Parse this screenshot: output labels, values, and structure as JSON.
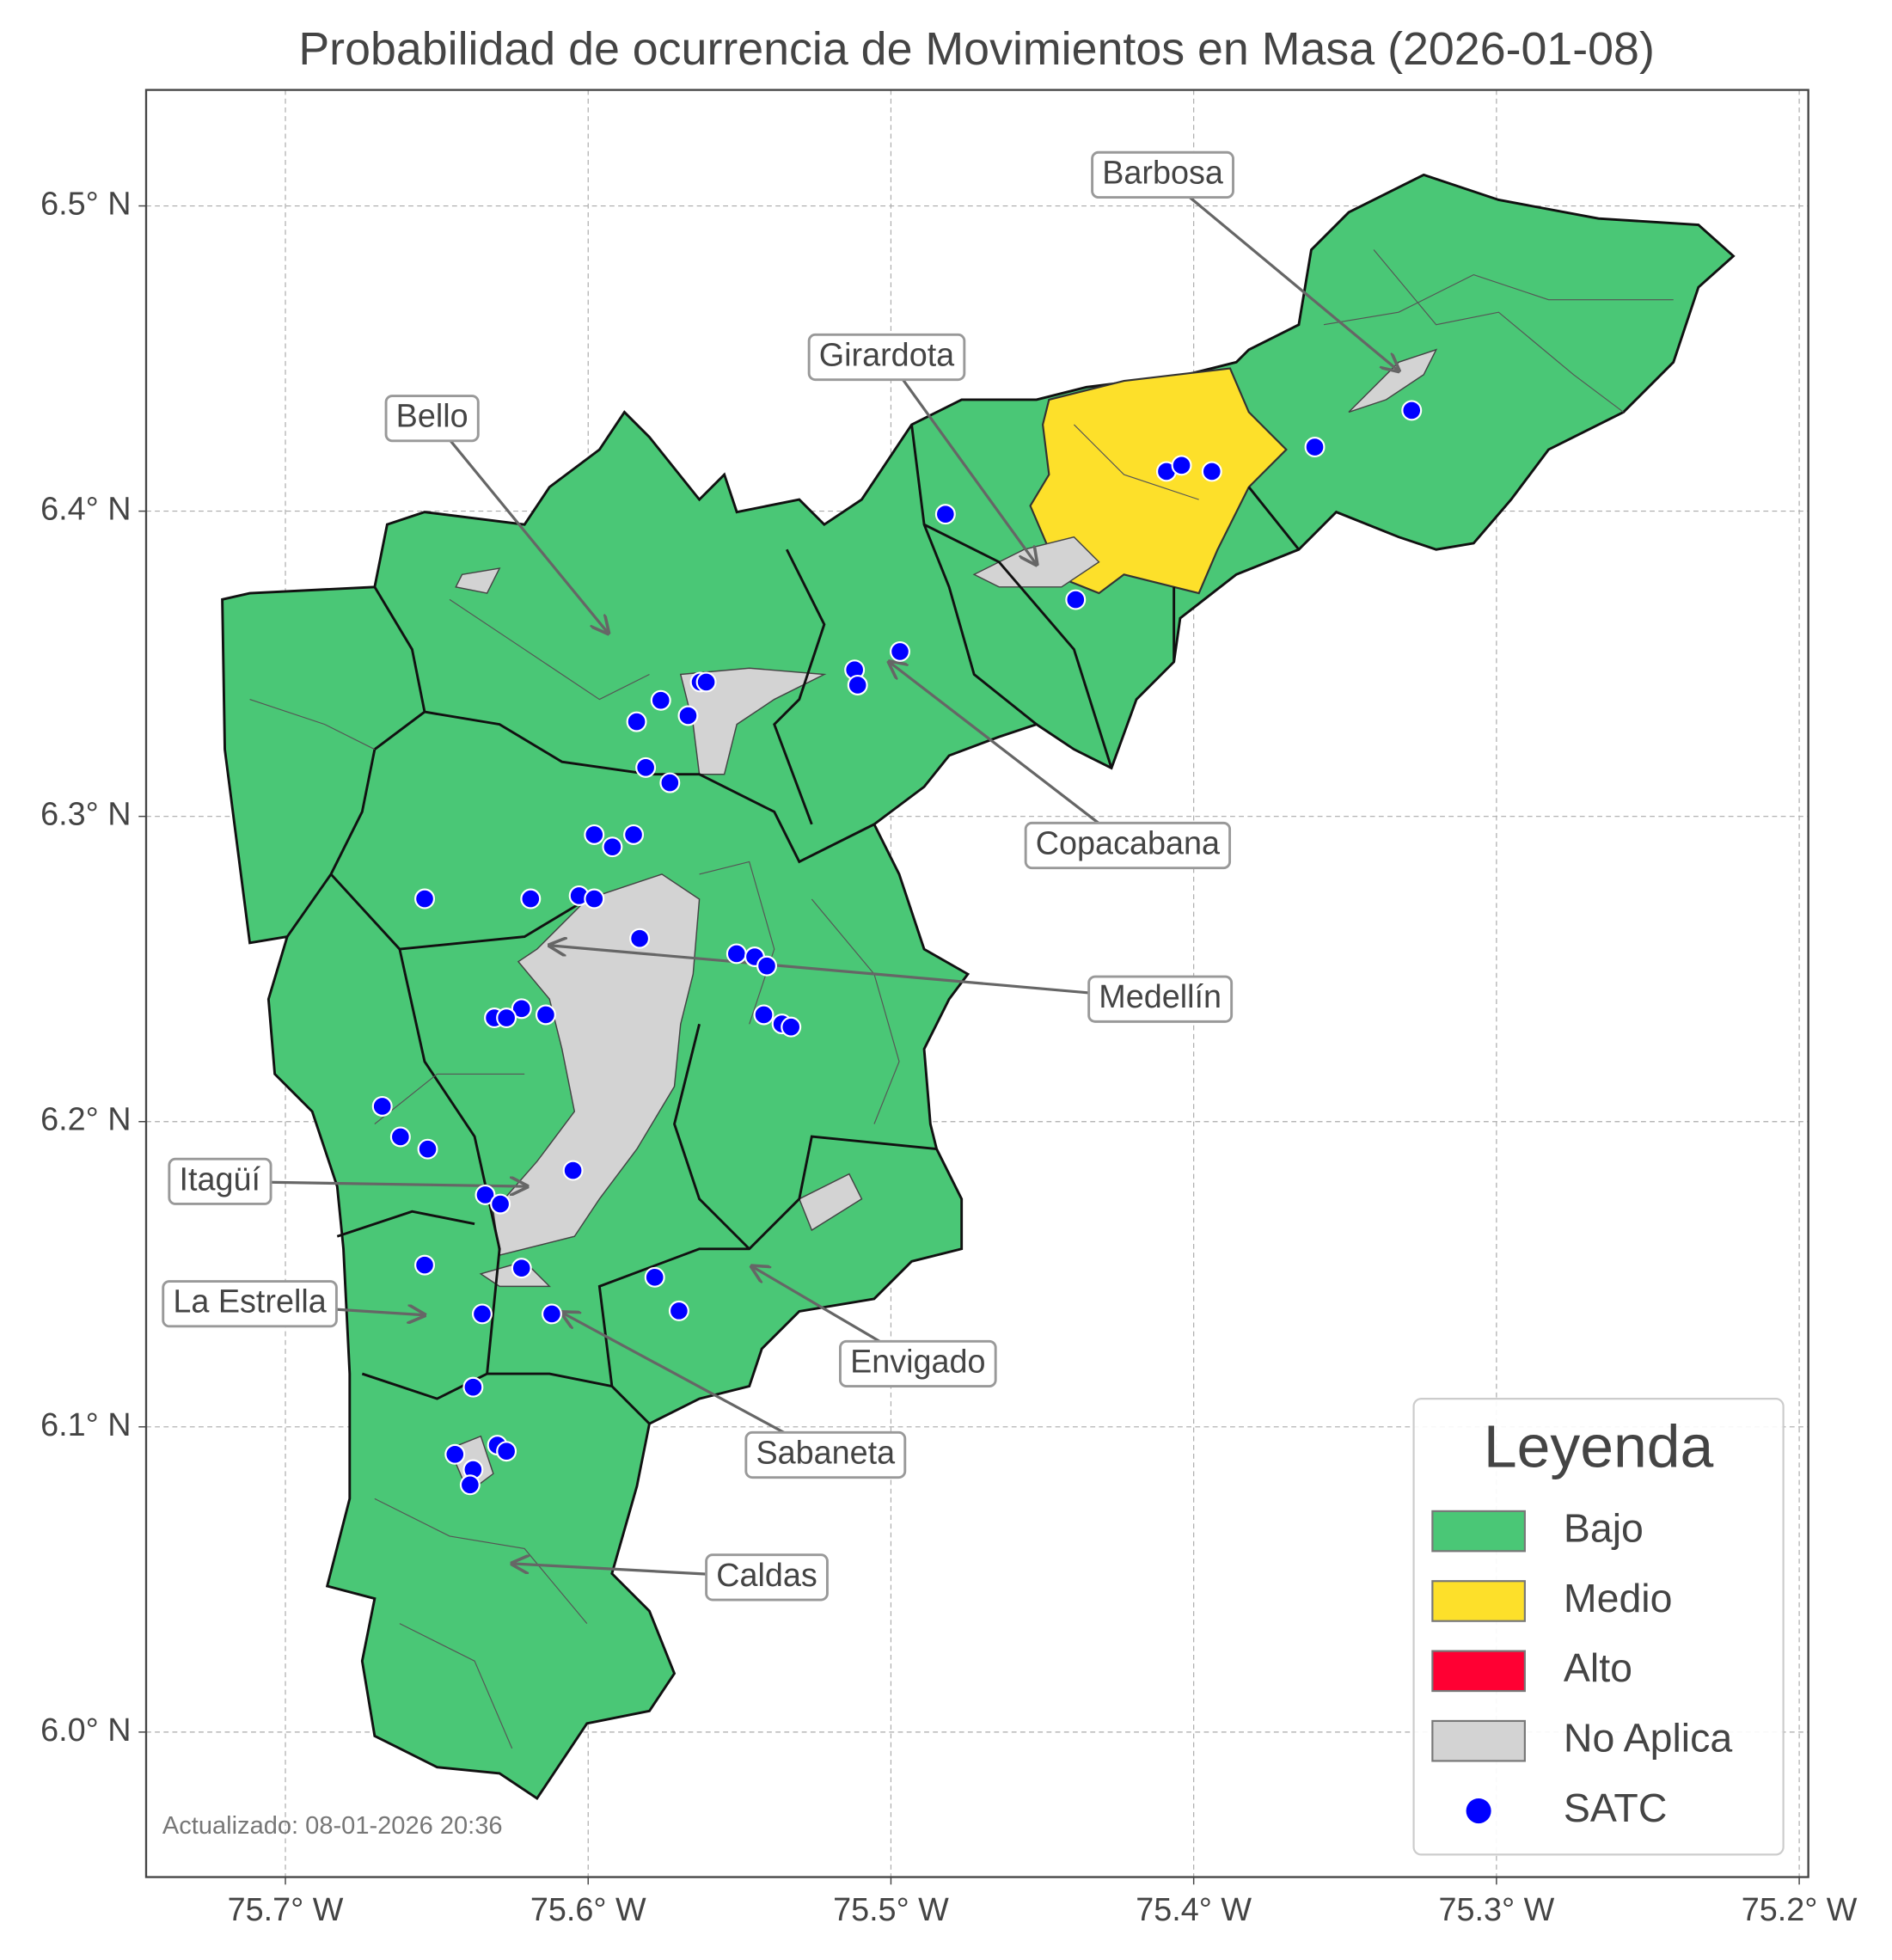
{
  "title": "Probabilidad de ocurrencia de Movimientos en Masa (2026-01-08)",
  "map": {
    "xlim": [
      -75.746,
      -75.197
    ],
    "ylim": [
      5.9525,
      6.538
    ],
    "xticks": [
      {
        "value": -75.7,
        "label": "75.7° W"
      },
      {
        "value": -75.6,
        "label": "75.6° W"
      },
      {
        "value": -75.5,
        "label": "75.5° W"
      },
      {
        "value": -75.4,
        "label": "75.4° W"
      },
      {
        "value": -75.3,
        "label": "75.3° W"
      },
      {
        "value": -75.2,
        "label": "75.2° W"
      }
    ],
    "yticks": [
      {
        "value": 6.0,
        "label": "6.0° N"
      },
      {
        "value": 6.1,
        "label": "6.1° N"
      },
      {
        "value": 6.2,
        "label": "6.2° N"
      },
      {
        "value": 6.3,
        "label": "6.3° N"
      },
      {
        "value": 6.4,
        "label": "6.4° N"
      },
      {
        "value": 6.5,
        "label": "6.5° N"
      }
    ],
    "grid": true,
    "annotations": [
      "Barbosa",
      "Girardota",
      "Bello",
      "Copacabana",
      "Medellín",
      "Itagüí",
      "La Estrella",
      "Envigado",
      "Sabaneta",
      "Caldas"
    ],
    "satc": {
      "color": "#0000ff",
      "x": [
        -75.328,
        -75.36,
        -75.409,
        -75.404,
        -75.394,
        -75.482,
        -75.439,
        -75.497,
        -75.512,
        -75.511,
        -75.563,
        -75.561,
        -75.576,
        -75.567,
        -75.584,
        -75.581,
        -75.573,
        -75.598,
        -75.585,
        -75.592,
        -75.654,
        -75.619,
        -75.603,
        -75.598,
        -75.583,
        -75.551,
        -75.545,
        -75.541,
        -75.542,
        -75.536,
        -75.533,
        -75.622,
        -75.631,
        -75.627,
        -75.614,
        -75.668,
        -75.662,
        -75.653,
        -75.605,
        -75.634,
        -75.629,
        -75.654,
        -75.622,
        -75.578,
        -75.57,
        -75.635,
        -75.612,
        -75.638,
        -75.644,
        -75.63,
        -75.627,
        -75.638,
        -75.639
      ],
      "y": [
        6.433,
        6.421,
        6.413,
        6.415,
        6.413,
        6.399,
        6.371,
        6.354,
        6.348,
        6.343,
        6.344,
        6.344,
        6.338,
        6.333,
        6.331,
        6.316,
        6.311,
        6.294,
        6.294,
        6.29,
        6.273,
        6.273,
        6.274,
        6.273,
        6.26,
        6.255,
        6.254,
        6.251,
        6.235,
        6.232,
        6.231,
        6.237,
        6.234,
        6.234,
        6.235,
        6.205,
        6.195,
        6.191,
        6.184,
        6.176,
        6.173,
        6.153,
        6.152,
        6.149,
        6.138,
        6.137,
        6.137,
        6.113,
        6.091,
        6.094,
        6.092,
        6.086,
        6.081
      ]
    },
    "legend": {
      "title": "Leyenda",
      "items": [
        {
          "name": "Bajo",
          "color": "#4ac776"
        },
        {
          "name": "Medio",
          "color": "#fde02a"
        },
        {
          "name": "Alto",
          "color": "#ff0033"
        },
        {
          "name": "No Aplica",
          "color": "#d3d3d3"
        },
        {
          "name": "SATC",
          "color": "#0000ff"
        }
      ]
    },
    "footer": "Actualizado: 08-01-2026 20:36"
  }
}
